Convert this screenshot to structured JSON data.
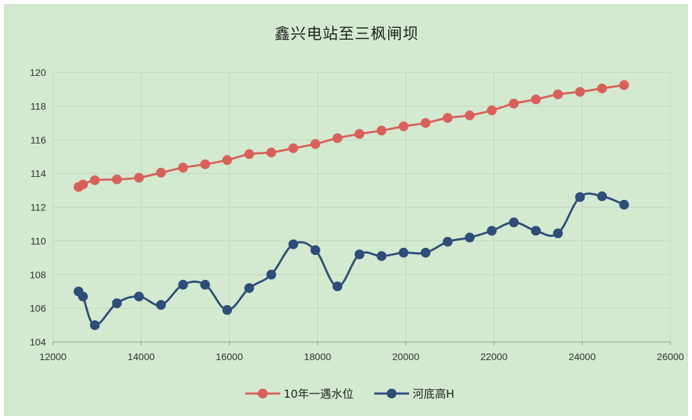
{
  "chart_data": {
    "type": "line",
    "title": "鑫兴电站至三枫闸坝",
    "xlim": [
      12000,
      26000
    ],
    "ylim": [
      104,
      120
    ],
    "x_ticks": [
      "12000",
      "14000",
      "16000",
      "18000",
      "20000",
      "22000",
      "24000",
      "26000"
    ],
    "y_ticks": [
      "104",
      "106",
      "108",
      "110",
      "112",
      "114",
      "116",
      "118",
      "120"
    ],
    "grid": true,
    "legend_position": "bottom",
    "series": [
      {
        "name": "10年一遇水位",
        "color": "#d9605a",
        "points": [
          [
            12580,
            113.2
          ],
          [
            12680,
            113.35
          ],
          [
            12950,
            113.6
          ],
          [
            13450,
            113.65
          ],
          [
            13950,
            113.75
          ],
          [
            14450,
            114.05
          ],
          [
            14950,
            114.35
          ],
          [
            15450,
            114.55
          ],
          [
            15950,
            114.8
          ],
          [
            16450,
            115.15
          ],
          [
            16950,
            115.25
          ],
          [
            17450,
            115.5
          ],
          [
            17950,
            115.75
          ],
          [
            18450,
            116.1
          ],
          [
            18950,
            116.35
          ],
          [
            19450,
            116.55
          ],
          [
            19950,
            116.8
          ],
          [
            20450,
            117.0
          ],
          [
            20950,
            117.3
          ],
          [
            21450,
            117.45
          ],
          [
            21950,
            117.75
          ],
          [
            22450,
            118.15
          ],
          [
            22950,
            118.4
          ],
          [
            23450,
            118.7
          ],
          [
            23950,
            118.85
          ],
          [
            24450,
            119.05
          ],
          [
            24950,
            119.25
          ]
        ]
      },
      {
        "name": "河底高H",
        "color": "#2e4d78",
        "points": [
          [
            12580,
            107.0
          ],
          [
            12680,
            106.7
          ],
          [
            12950,
            105.0
          ],
          [
            13450,
            106.3
          ],
          [
            13950,
            106.7
          ],
          [
            14450,
            106.2
          ],
          [
            14950,
            107.4
          ],
          [
            15450,
            107.4
          ],
          [
            15950,
            105.9
          ],
          [
            16450,
            107.2
          ],
          [
            16950,
            108.0
          ],
          [
            17450,
            109.8
          ],
          [
            17950,
            109.45
          ],
          [
            18450,
            107.3
          ],
          [
            18950,
            109.2
          ],
          [
            19450,
            109.1
          ],
          [
            19950,
            109.3
          ],
          [
            20450,
            109.3
          ],
          [
            20950,
            109.95
          ],
          [
            21450,
            110.2
          ],
          [
            21950,
            110.6
          ],
          [
            22450,
            111.1
          ],
          [
            22950,
            110.6
          ],
          [
            23450,
            110.45
          ],
          [
            23950,
            112.6
          ],
          [
            24450,
            112.65
          ],
          [
            24950,
            112.15
          ]
        ]
      }
    ]
  }
}
